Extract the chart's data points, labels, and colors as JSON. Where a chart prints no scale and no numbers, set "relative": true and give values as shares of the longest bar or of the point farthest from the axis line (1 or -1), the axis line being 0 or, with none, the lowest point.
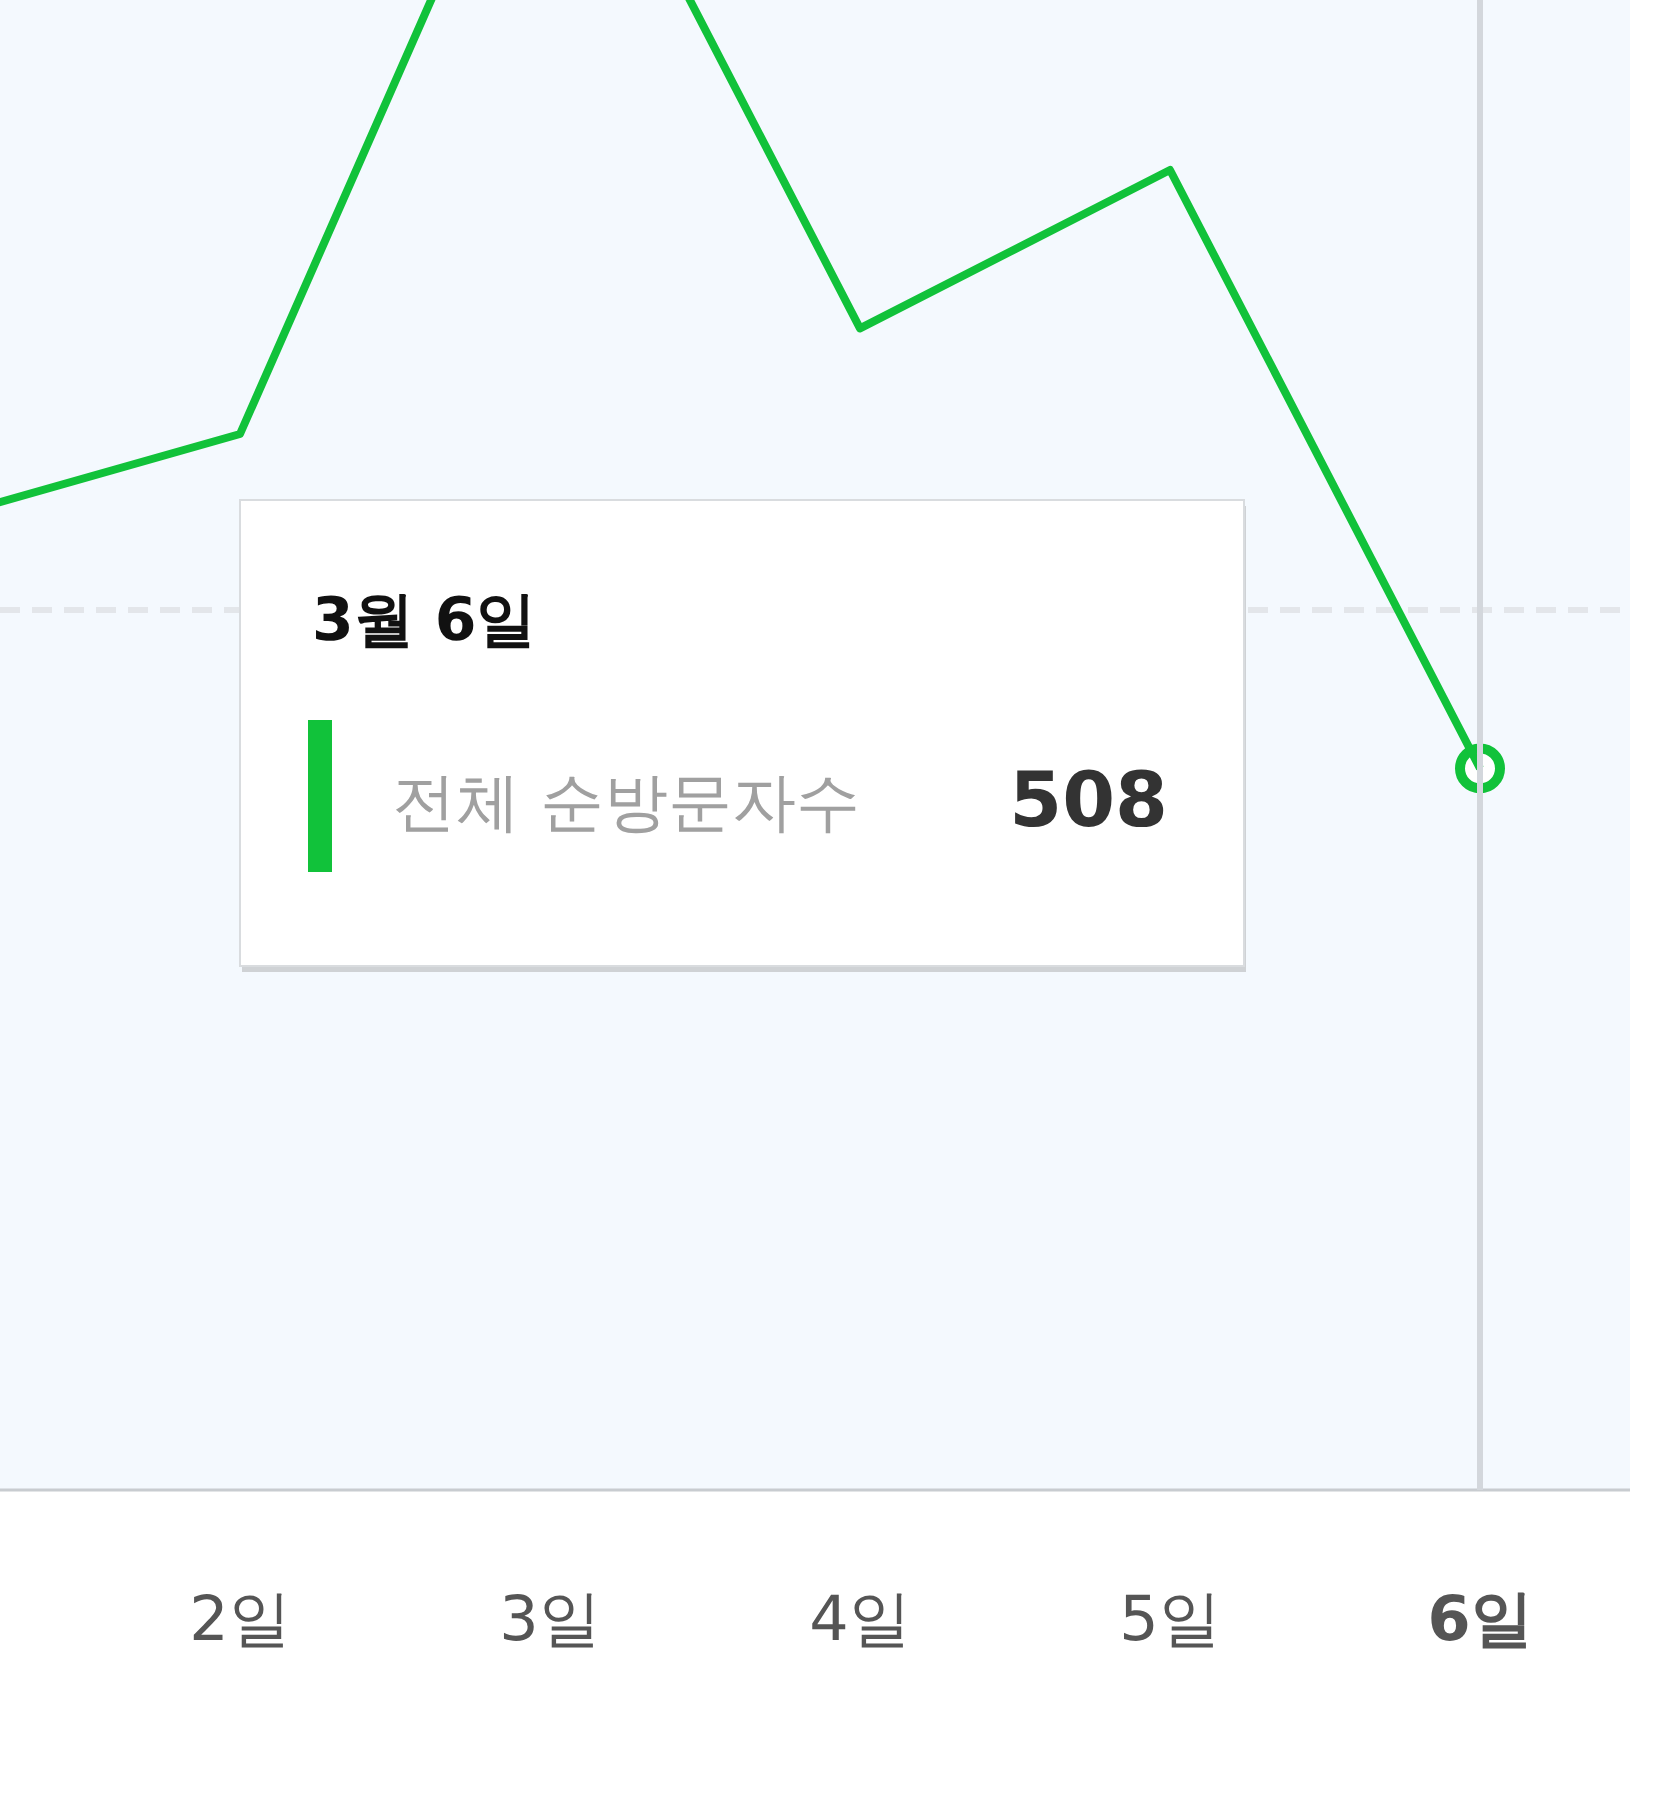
{
  "chart_data": {
    "type": "line",
    "relative": true,
    "categories": [
      null,
      "2일",
      "3일",
      "4일",
      "5일",
      "**6일**"
    ],
    "tick_labels": "x",
    "series": [
      {
        "name": "전체 순방문자수",
        "color": "#11c23a",
        "values": [
          0.55,
          0.6,
          1,
          0.66,
          0.75,
          0.41
        ]
      }
    ],
    "ref_lines": [
      {
        "axis": "y",
        "value": 0.5,
        "line_style": "dashed",
        "color": "#e3e6ea"
      }
    ],
    "annotations": [
      "3월 6일",
      "508"
    ],
    "marker": "none",
    "line_style": "solid"
  }
}
